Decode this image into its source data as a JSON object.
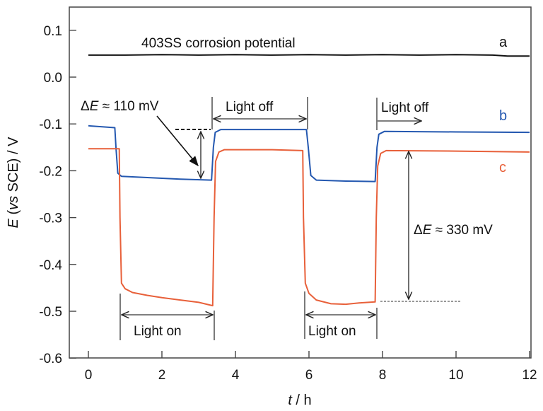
{
  "chart_data": {
    "type": "line",
    "title": "",
    "xlabel": "t / h",
    "xlabel_parts": {
      "var": "t",
      "rest": " / h"
    },
    "ylabel": "E (vs SCE) / V",
    "ylabel_parts": {
      "var": "E",
      "open": " (",
      "vs": "vs",
      "rest": " SCE) / V"
    },
    "xlim": [
      -0.2,
      12
    ],
    "ylim": [
      -0.6,
      0.15
    ],
    "xticks": [
      0,
      2,
      4,
      6,
      8,
      10,
      12
    ],
    "xtick_labels": [
      "0",
      "2",
      "4",
      "6",
      "8",
      "10",
      "12"
    ],
    "yticks": [
      0.1,
      0.0,
      -0.1,
      -0.2,
      -0.3,
      -0.4,
      -0.5,
      -0.6
    ],
    "ytick_labels": [
      "0.1",
      "0.0",
      "-0.1",
      "-0.2",
      "-0.3",
      "-0.4",
      "-0.5",
      "-0.6"
    ],
    "grid": false,
    "series": [
      {
        "name": "a",
        "label": "a",
        "color": "#111111",
        "x": [
          0,
          1,
          2,
          3,
          4,
          5,
          6,
          7,
          8,
          9,
          10,
          11,
          11.4,
          12
        ],
        "y": [
          0.047,
          0.047,
          0.048,
          0.047,
          0.048,
          0.047,
          0.048,
          0.047,
          0.048,
          0.047,
          0.048,
          0.047,
          0.045,
          0.045
        ]
      },
      {
        "name": "b",
        "label": "b",
        "color": "#2458b0",
        "x": [
          0,
          0.72,
          0.75,
          0.8,
          0.9,
          1.5,
          2.5,
          3.35,
          3.4,
          3.45,
          3.6,
          5,
          5.93,
          5.98,
          6.05,
          6.2,
          7,
          7.8,
          7.85,
          7.9,
          8.05,
          10,
          12
        ],
        "y": [
          -0.104,
          -0.108,
          -0.15,
          -0.205,
          -0.212,
          -0.214,
          -0.218,
          -0.22,
          -0.15,
          -0.118,
          -0.112,
          -0.112,
          -0.112,
          -0.15,
          -0.21,
          -0.22,
          -0.222,
          -0.223,
          -0.15,
          -0.122,
          -0.116,
          -0.117,
          -0.118
        ]
      },
      {
        "name": "c",
        "label": "c",
        "color": "#e8603a",
        "x": [
          0,
          0.84,
          0.86,
          0.9,
          1.0,
          1.2,
          1.6,
          2.0,
          2.5,
          3.0,
          3.38,
          3.42,
          3.46,
          3.55,
          3.7,
          5,
          5.83,
          5.85,
          5.9,
          6.0,
          6.2,
          6.6,
          7.0,
          7.4,
          7.8,
          7.83,
          7.87,
          7.95,
          8.1,
          10,
          12
        ],
        "y": [
          -0.153,
          -0.153,
          -0.3,
          -0.44,
          -0.452,
          -0.46,
          -0.466,
          -0.471,
          -0.476,
          -0.481,
          -0.488,
          -0.3,
          -0.18,
          -0.16,
          -0.155,
          -0.155,
          -0.157,
          -0.3,
          -0.44,
          -0.462,
          -0.476,
          -0.484,
          -0.485,
          -0.482,
          -0.48,
          -0.3,
          -0.19,
          -0.163,
          -0.157,
          -0.158,
          -0.16
        ]
      }
    ],
    "annotations": {
      "title_a": "403SS corrosion potential",
      "delta_small": {
        "sym": "Δ",
        "var": "E",
        "rest": " ≈ 110 mV"
      },
      "delta_large": {
        "sym": "Δ",
        "var": "E",
        "rest": " ≈ 330 mV"
      },
      "light_off": "Light off",
      "light_on": "Light on",
      "light_off_periods": [
        [
          3.4,
          5.98
        ],
        [
          7.85,
          9.1
        ]
      ],
      "light_on_periods": [
        [
          0.88,
          3.45
        ],
        [
          5.85,
          7.85
        ]
      ],
      "delta_small_range": [
        -0.112,
        -0.22
      ],
      "delta_large_range": [
        -0.157,
        -0.48
      ]
    }
  }
}
